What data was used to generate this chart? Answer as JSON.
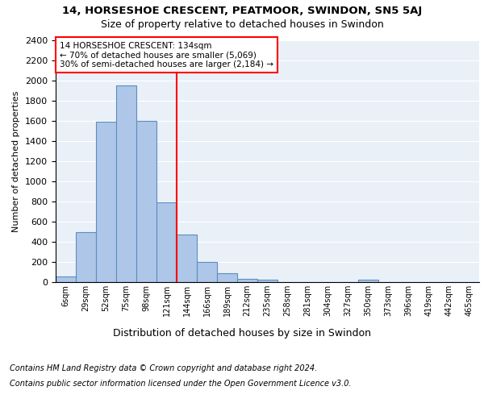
{
  "title1": "14, HORSESHOE CRESCENT, PEATMOOR, SWINDON, SN5 5AJ",
  "title2": "Size of property relative to detached houses in Swindon",
  "xlabel": "Distribution of detached houses by size in Swindon",
  "ylabel": "Number of detached properties",
  "categories": [
    "6sqm",
    "29sqm",
    "52sqm",
    "75sqm",
    "98sqm",
    "121sqm",
    "144sqm",
    "166sqm",
    "189sqm",
    "212sqm",
    "235sqm",
    "258sqm",
    "281sqm",
    "304sqm",
    "327sqm",
    "350sqm",
    "373sqm",
    "396sqm",
    "419sqm",
    "442sqm",
    "465sqm"
  ],
  "values": [
    60,
    500,
    1590,
    1950,
    1600,
    790,
    470,
    200,
    90,
    35,
    25,
    0,
    0,
    0,
    0,
    25,
    0,
    0,
    0,
    0,
    0
  ],
  "bar_color": "#aec6e8",
  "bar_edge_color": "#5a8fc0",
  "property_line_x": 5.5,
  "property_line_color": "red",
  "annotation_text": "14 HORSESHOE CRESCENT: 134sqm\n← 70% of detached houses are smaller (5,069)\n30% of semi-detached houses are larger (2,184) →",
  "annotation_box_color": "white",
  "annotation_box_edge_color": "red",
  "ylim": [
    0,
    2400
  ],
  "yticks": [
    0,
    200,
    400,
    600,
    800,
    1000,
    1200,
    1400,
    1600,
    1800,
    2000,
    2200,
    2400
  ],
  "footnote1": "Contains HM Land Registry data © Crown copyright and database right 2024.",
  "footnote2": "Contains public sector information licensed under the Open Government Licence v3.0.",
  "bg_color": "#eaf0f8",
  "grid_color": "white",
  "title1_fontsize": 9.5,
  "title2_fontsize": 9
}
